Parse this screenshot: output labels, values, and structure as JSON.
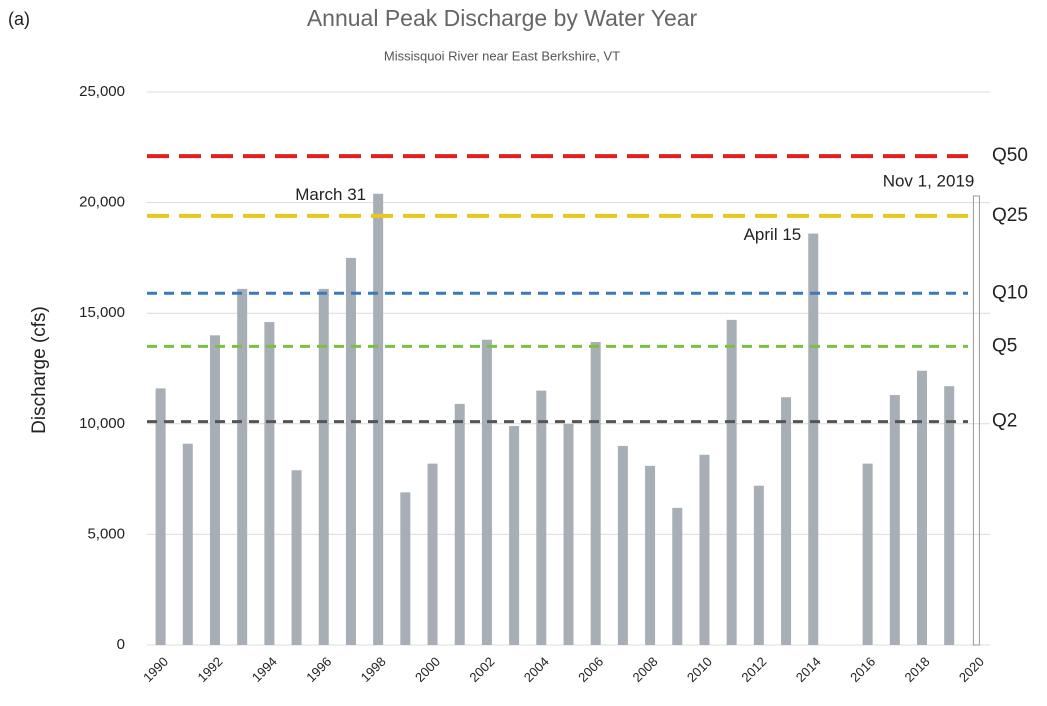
{
  "chart_data": {
    "type": "bar",
    "panel_label": "(a)",
    "title": "Annual Peak Discharge by Water Year",
    "subtitle": "Missisquoi River near East Berkshire, VT",
    "y_label": "Discharge (cfs)",
    "categories": [
      "1990",
      null,
      "1992",
      null,
      "1994",
      null,
      "1996",
      null,
      "1998",
      null,
      "2000",
      null,
      "2002",
      null,
      "2004",
      null,
      "2006",
      null,
      "2008",
      null,
      "2010",
      null,
      "2012",
      null,
      "2014",
      null,
      "2016",
      null,
      "2018",
      null,
      "2020"
    ],
    "values": [
      11600,
      9100,
      14000,
      16100,
      14600,
      7900,
      16100,
      17500,
      20400,
      6900,
      8200,
      10900,
      13800,
      9900,
      11500,
      10000,
      13700,
      9000,
      8100,
      6200,
      8600,
      14700,
      7200,
      11200,
      18600,
      null,
      8200,
      11300,
      12400,
      11700,
      null
    ],
    "color": "#a7aeb5",
    "hollow_bar": {
      "value": 20300,
      "label": "Nov 1, 2019"
    },
    "annotations": [
      {
        "text": "March 31",
        "category": "1998"
      },
      {
        "text": "April 15",
        "category": "2014"
      }
    ],
    "reference_lines": [
      {
        "name": "Q50",
        "value": 22100,
        "color": "#e02020"
      },
      {
        "name": "Q25",
        "value": 19400,
        "color": "#e8c820"
      },
      {
        "name": "Q10",
        "value": 15900,
        "color": "#3a7ab8"
      },
      {
        "name": "Q5",
        "value": 13500,
        "color": "#7cc040"
      },
      {
        "name": "Q2",
        "value": 10100,
        "color": "#555555"
      }
    ],
    "ylim": [
      0,
      25000
    ],
    "yticks": [
      0,
      {
        "value": 5000,
        "label": "5,000"
      },
      {
        "value": 10000,
        "label": "10,000"
      },
      {
        "value": 15000,
        "label": "15,000"
      },
      {
        "value": 20000,
        "label": "20,000"
      },
      {
        "value": 25000,
        "label": "25,000"
      }
    ],
    "grid": true
  }
}
